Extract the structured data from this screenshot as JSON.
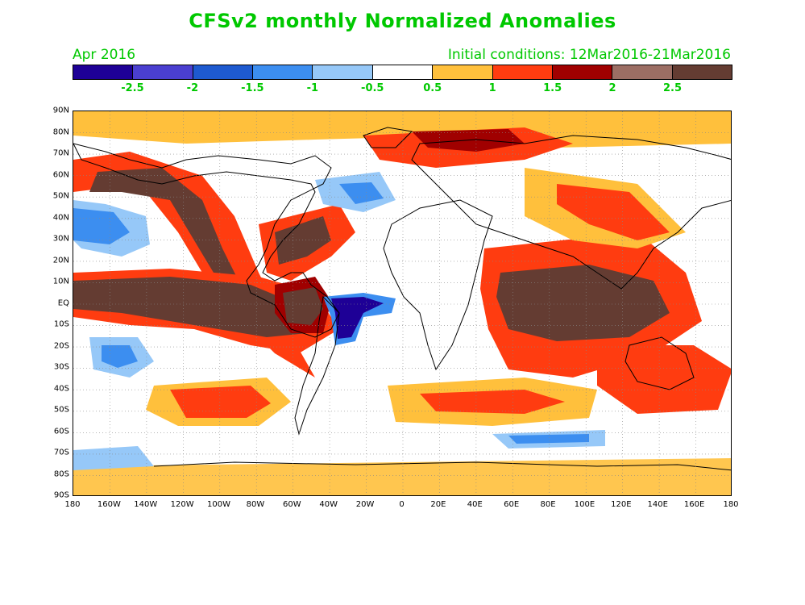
{
  "header": {
    "title": "CFSv2 monthly Normalized Anomalies",
    "month": "Apr 2016",
    "initial_conditions": "Initial conditions: 12Mar2016-21Mar2016"
  },
  "colorbar": {
    "colors": [
      "#1e0096",
      "#4a3fd0",
      "#1e5ad0",
      "#3c8ef0",
      "#96c8f8",
      "#ffffff",
      "#ffc03c",
      "#ff3c10",
      "#a00000",
      "#9c6e64",
      "#643c32"
    ],
    "labels": [
      "-2.5",
      "-2",
      "-1.5",
      "-1",
      "-0.5",
      "0.5",
      "1",
      "1.5",
      "2",
      "2.5"
    ]
  },
  "map": {
    "lat_labels": [
      "90N",
      "80N",
      "70N",
      "60N",
      "50N",
      "40N",
      "30N",
      "20N",
      "10N",
      "EQ",
      "10S",
      "20S",
      "30S",
      "40S",
      "50S",
      "60S",
      "70S",
      "80S",
      "90S"
    ],
    "lon_labels": [
      "180",
      "160W",
      "140W",
      "120W",
      "100W",
      "80W",
      "60W",
      "40W",
      "20W",
      "0",
      "20E",
      "40E",
      "60E",
      "80E",
      "100E",
      "120E",
      "140E",
      "160E",
      "180"
    ]
  }
}
